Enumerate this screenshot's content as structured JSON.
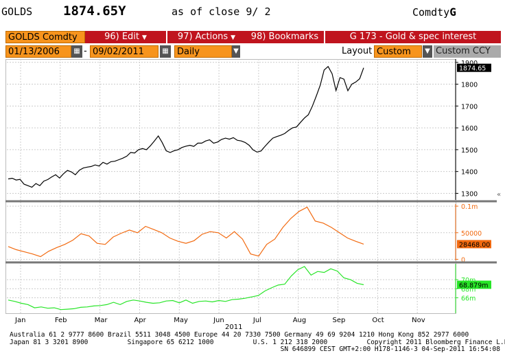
{
  "header": {
    "ticker": "GOLDS",
    "price": "1874.65Y",
    "as_of": "as of close  9/ 2",
    "source": "Comdty",
    "source_suffix": "G"
  },
  "toolbar": {
    "security": "GOLDS Comdty",
    "edit": "96) Edit",
    "actions": "97) Actions",
    "bookmarks": "98) Bookmarks",
    "title": "G 173 - Gold & spec interest",
    "start_date": "01/13/2006",
    "end_date": "09/02/2011",
    "periodicity": "Daily",
    "layout_label": "Layout",
    "layout_value": "Custom",
    "currency": "Custom CCY"
  },
  "colors": {
    "orange": "#f7941d",
    "red": "#c0141e",
    "price_line": "#000000",
    "spec_line": "#f26a10",
    "third_line": "#27e527"
  },
  "chart_data": [
    {
      "type": "line",
      "series": [
        {
          "name": "",
          "values": [
            1366,
            1369,
            1361,
            1364,
            1342,
            1335,
            1328,
            1345,
            1335,
            1356,
            1363,
            1375,
            1385,
            1370,
            1390,
            1405,
            1398,
            1385,
            1406,
            1416,
            1420,
            1423,
            1430,
            1425,
            1442,
            1434,
            1445,
            1447,
            1454,
            1461,
            1470,
            1487,
            1485,
            1500,
            1505,
            1500,
            1518,
            1540,
            1563,
            1532,
            1495,
            1487,
            1495,
            1500,
            1510,
            1516,
            1520,
            1515,
            1530,
            1530,
            1540,
            1545,
            1530,
            1535,
            1547,
            1553,
            1548,
            1555,
            1543,
            1540,
            1533,
            1520,
            1499,
            1489,
            1494,
            1515,
            1535,
            1553,
            1560,
            1566,
            1574,
            1588,
            1600,
            1604,
            1625,
            1645,
            1660,
            1699,
            1745,
            1795,
            1865,
            1881,
            1848,
            1771,
            1830,
            1823,
            1770,
            1800,
            1810,
            1825,
            1875
          ]
        }
      ],
      "ylim": [
        1270,
        1915
      ],
      "yticks": [
        1300,
        1400,
        1500,
        1600,
        1700,
        1800,
        1900
      ],
      "last_label": "1874.65"
    },
    {
      "type": "line",
      "series": [
        {
          "name": "",
          "values": [
            24000,
            18000,
            14000,
            10000,
            5000,
            15000,
            22000,
            28000,
            36000,
            48000,
            44000,
            30000,
            28000,
            42000,
            49000,
            55000,
            50000,
            62000,
            56000,
            50000,
            40000,
            34000,
            30000,
            35000,
            47000,
            52000,
            50000,
            40000,
            52000,
            38000,
            10000,
            6000,
            28000,
            38000,
            60000,
            77000,
            90000,
            98000,
            72000,
            68000,
            60000,
            50000,
            40000,
            34000,
            28468
          ]
        }
      ],
      "ylim": [
        -2000,
        104000
      ],
      "yticks": [
        "0.1m",
        "50000",
        "0"
      ],
      "last_label": "28468.00"
    },
    {
      "type": "line",
      "series": [
        {
          "name": "",
          "values": [
            65.5,
            65.2,
            64.8,
            64.5,
            63.8,
            64.0,
            63.7,
            63.8,
            63.4,
            63.5,
            63.6,
            63.9,
            64.0,
            64.2,
            64.3,
            64.5,
            65.0,
            64.5,
            65.2,
            65.5,
            65.3,
            65.0,
            64.8,
            64.9,
            65.3,
            65.4,
            64.9,
            65.5,
            64.8,
            65.2,
            65.3,
            65.1,
            65.4,
            65.2,
            65.6,
            65.7,
            65.9,
            66.2,
            66.5,
            67.5,
            68.2,
            68.8,
            69.0,
            70.8,
            72.2,
            72.9,
            71.0,
            71.8,
            71.6,
            72.4,
            71.9,
            70.4,
            70.0,
            69.2,
            68.879
          ]
        }
      ],
      "ylim": [
        62.6,
        73.5
      ],
      "yticks": [
        "70m",
        "68m",
        "66m"
      ],
      "last_label": "68.879m"
    }
  ],
  "xaxis": {
    "months": [
      "Jan",
      "Feb",
      "Mar",
      "Apr",
      "May",
      "Jun",
      "Jul",
      "Aug",
      "Sep",
      "Oct",
      "Nov"
    ],
    "year": "2011"
  },
  "footer": {
    "line1": "Australia 61 2 9777 8600 Brazil 5511 3048 4500 Europe 44 20 7330 7500 Germany 49 69 9204 1210 Hong Kong 852 2977 6000",
    "line2": "Japan 81 3 3201 8900          Singapore 65 6212 1000          U.S. 1 212 318 2000          Copyright 2011 Bloomberg Finance L.P.",
    "line3": "                                                                     SN 646899 CEST GMT+2:00 H178-1146-3 04-Sep-2011 16:54:08"
  }
}
